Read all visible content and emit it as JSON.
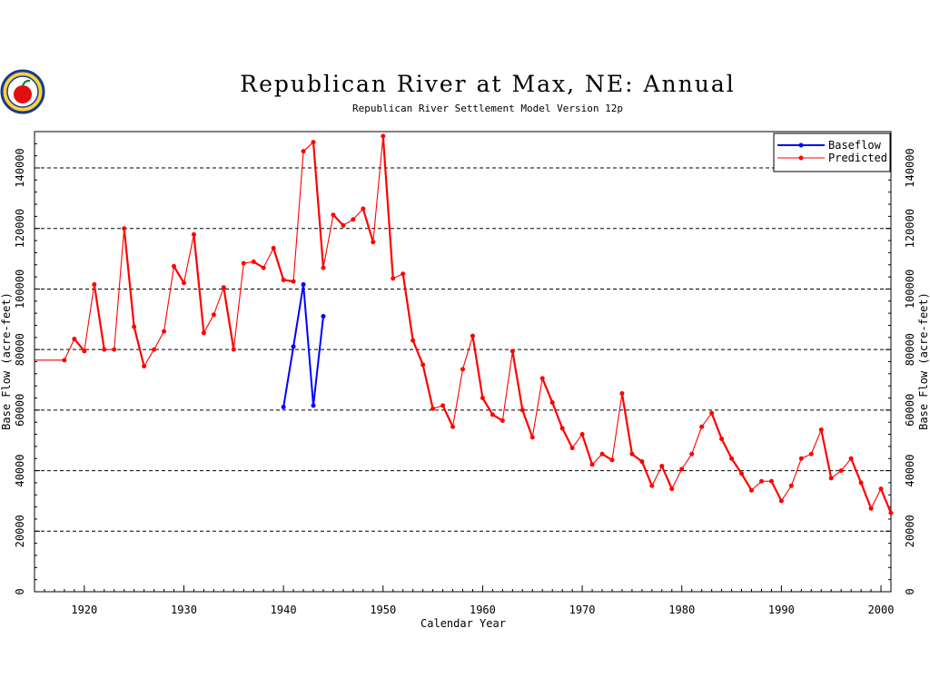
{
  "logo": {
    "icon": "apple-seal-icon"
  },
  "chart_data": {
    "type": "line",
    "title": "Republican River at Max, NE: Annual",
    "subtitle": "Republican River Settlement Model Version 12p",
    "xlabel": "Calendar Year",
    "ylabel": "Base Flow (acre-feet)",
    "xlim": [
      1915,
      2001
    ],
    "ylim": [
      0,
      152000
    ],
    "x_ticks": [
      1920,
      1930,
      1940,
      1950,
      1960,
      1970,
      1980,
      1990,
      2000
    ],
    "y_ticks": [
      0,
      20000,
      40000,
      60000,
      80000,
      100000,
      120000,
      140000
    ],
    "grid": "horizontal dashed",
    "legend_position": "top-right",
    "series": [
      {
        "name": "Baseflow",
        "color": "#0000ff",
        "x": [
          1940,
          1941,
          1942,
          1943,
          1944
        ],
        "y": [
          61000,
          81000,
          101500,
          61500,
          91000
        ]
      },
      {
        "name": "Predicted",
        "color": "#ff0000",
        "x": [
          1918,
          1919,
          1920,
          1921,
          1922,
          1923,
          1924,
          1925,
          1926,
          1927,
          1928,
          1929,
          1930,
          1931,
          1932,
          1933,
          1934,
          1935,
          1936,
          1937,
          1938,
          1939,
          1940,
          1941,
          1942,
          1943,
          1944,
          1945,
          1946,
          1947,
          1948,
          1949,
          1950,
          1951,
          1952,
          1953,
          1954,
          1955,
          1956,
          1957,
          1958,
          1959,
          1960,
          1961,
          1962,
          1963,
          1964,
          1965,
          1966,
          1967,
          1968,
          1969,
          1970,
          1971,
          1972,
          1973,
          1974,
          1975,
          1976,
          1977,
          1978,
          1979,
          1980,
          1981,
          1982,
          1983,
          1984,
          1985,
          1986,
          1987,
          1988,
          1989,
          1990,
          1991,
          1992,
          1993,
          1994,
          1995,
          1996,
          1997,
          1998,
          1999,
          2000,
          2001
        ],
        "y": [
          76500,
          83500,
          79500,
          101500,
          80000,
          80000,
          120000,
          87500,
          74500,
          80000,
          86000,
          107500,
          102000,
          118000,
          85500,
          91500,
          100500,
          80000,
          108500,
          109000,
          107000,
          113500,
          103000,
          102500,
          145500,
          148500,
          107000,
          124500,
          121000,
          123000,
          126500,
          115500,
          150500,
          103500,
          105000,
          83000,
          75000,
          60500,
          61500,
          54500,
          73500,
          84500,
          64000,
          58500,
          56500,
          79500,
          60000,
          51000,
          70500,
          62500,
          54000,
          47500,
          52000,
          42000,
          45500,
          43500,
          65500,
          45500,
          43000,
          35000,
          41500,
          34000,
          40500,
          45500,
          54500,
          59000,
          50500,
          44000,
          39000,
          33500,
          36500,
          36500,
          30000,
          35000,
          44000,
          45500,
          53500,
          37500,
          40000,
          44000,
          36000,
          27500,
          34000,
          26000
        ]
      }
    ]
  }
}
